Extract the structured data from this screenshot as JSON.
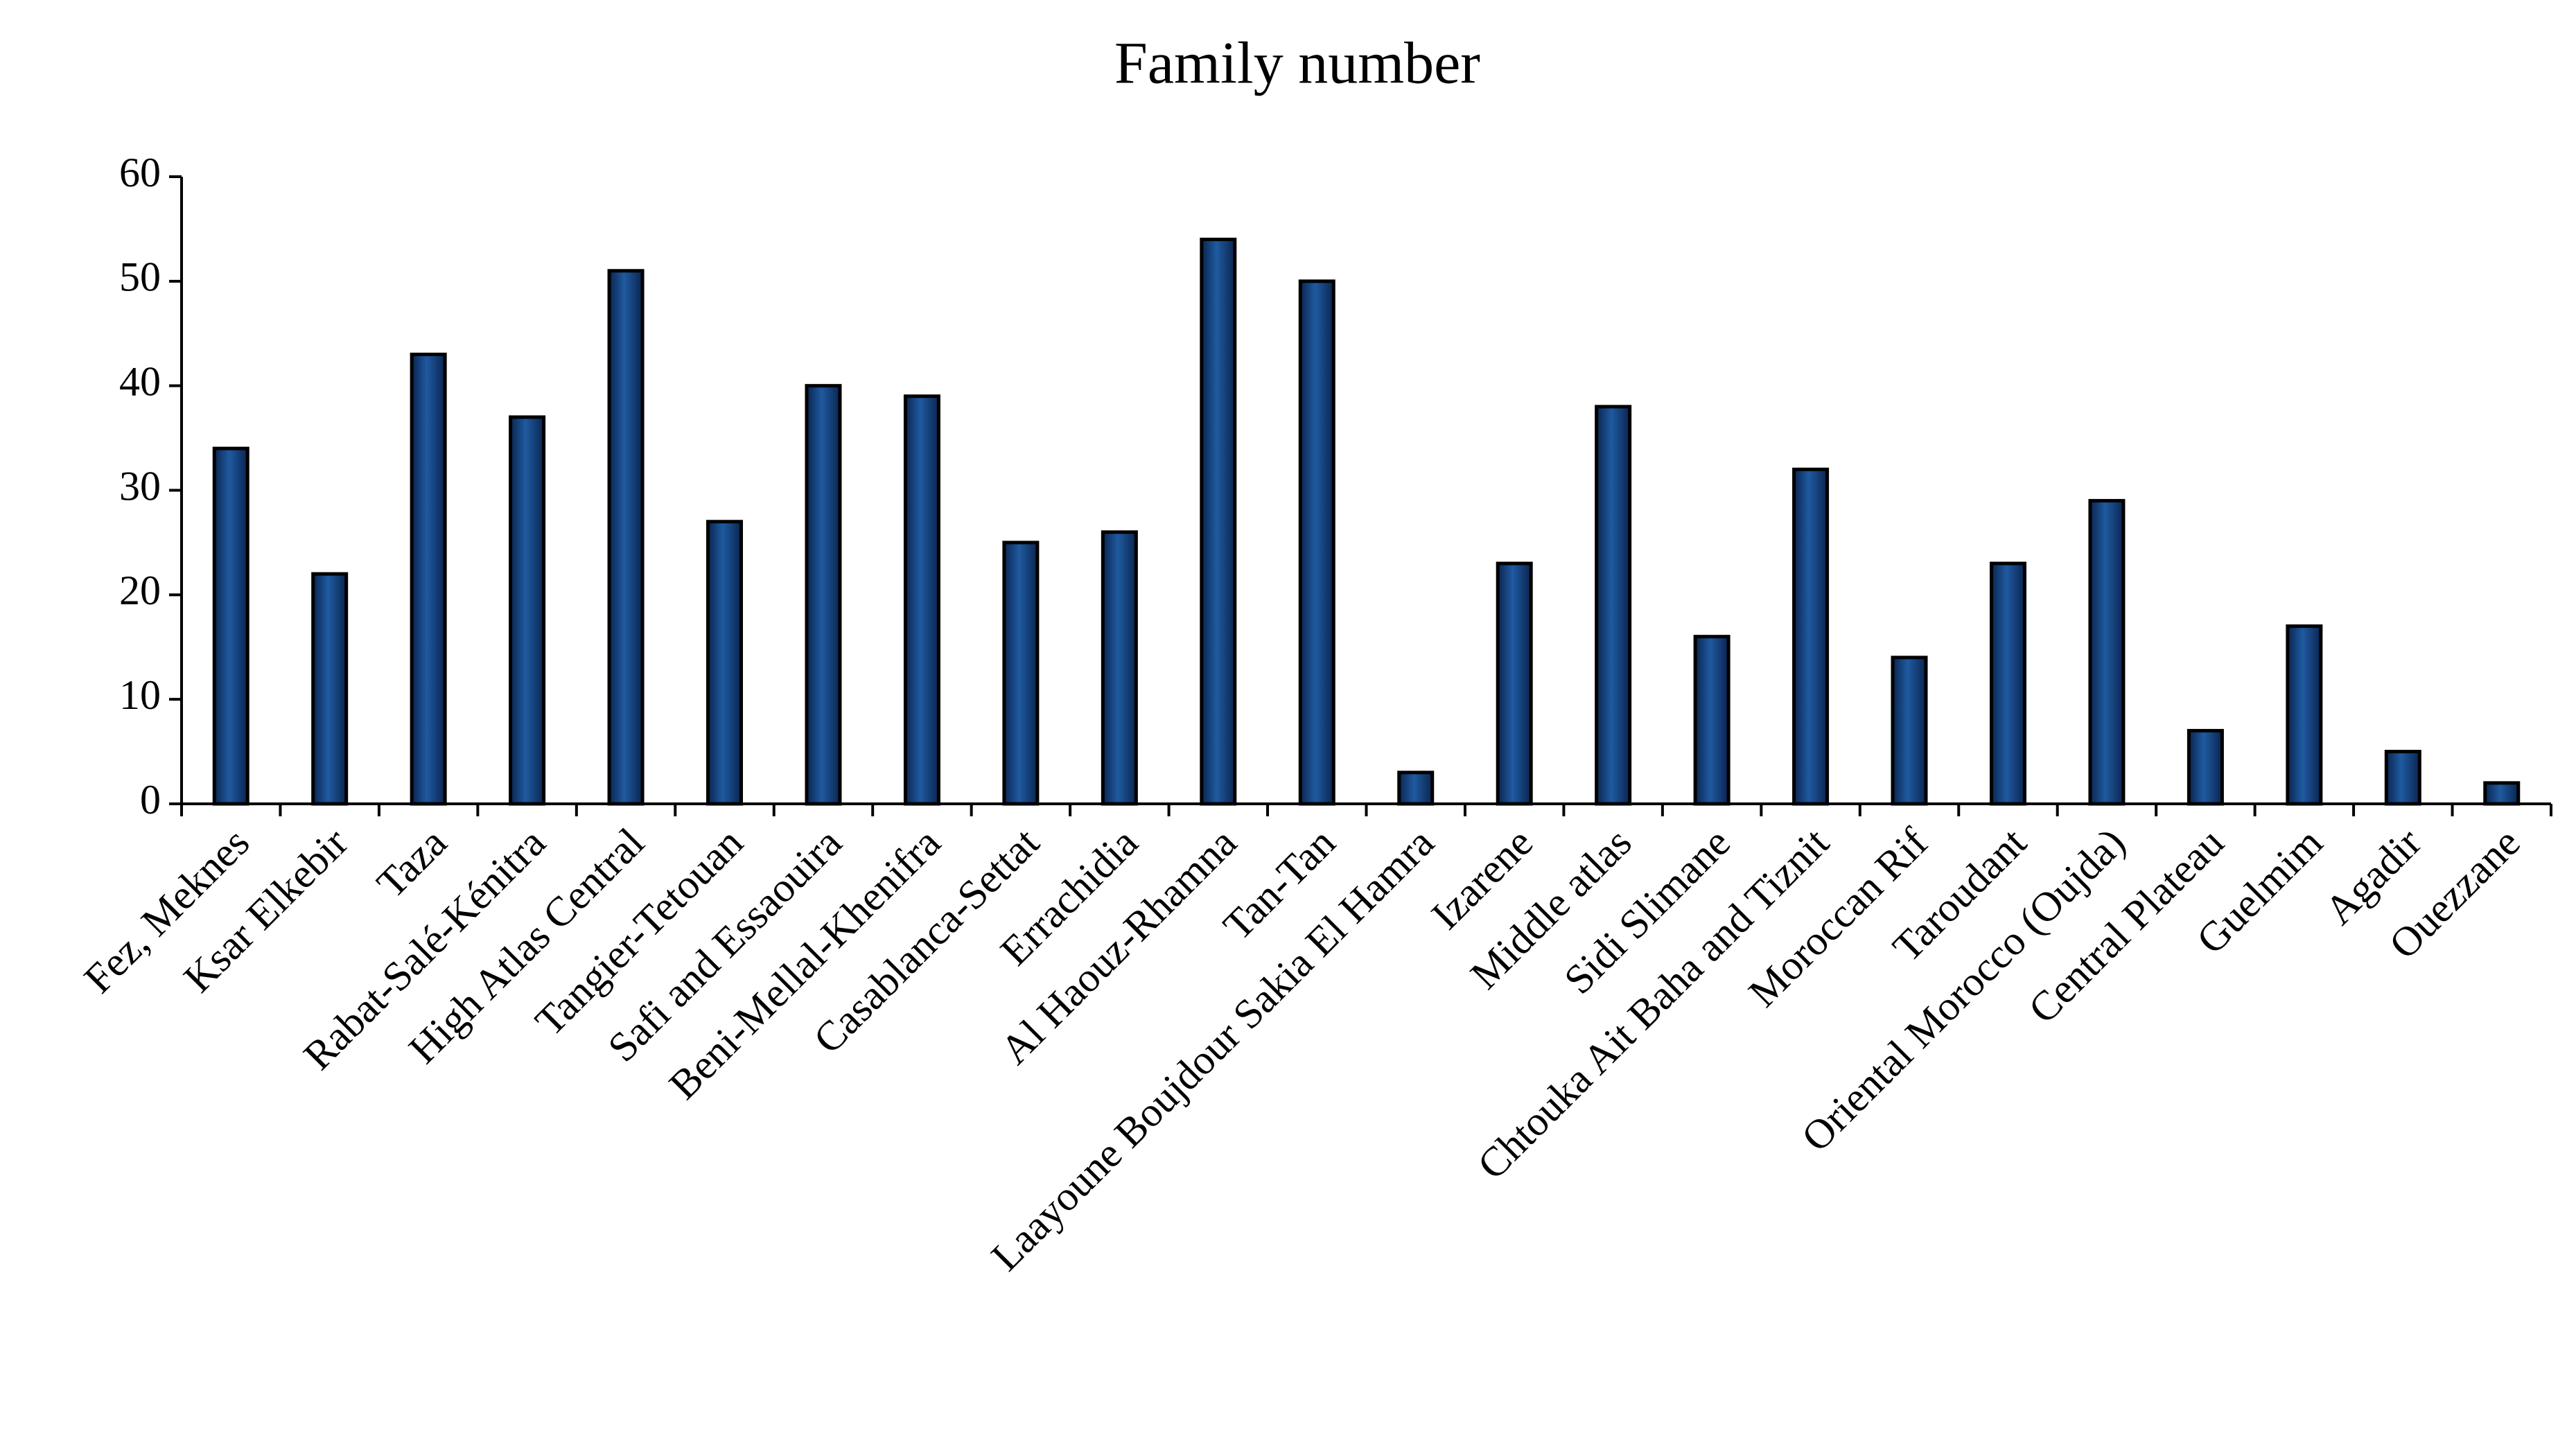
{
  "chart_data": {
    "type": "bar",
    "title": "Family number",
    "categories": [
      "Fez, Meknes",
      "Ksar Elkebir",
      "Taza",
      "Rabat-Salé-Kénitra",
      "High Atlas Central",
      "Tangier-Tetouan",
      "Safi and Essaouira",
      "Beni-Mellal-Khenifra",
      "Casablanca-Settat",
      "Errachidia",
      "Al Haouz-Rhamna",
      "Tan-Tan",
      "Laayoune Boujdour Sakia El Hamra",
      "Izarene",
      "Middle atlas",
      "Sidi Slimane",
      "Chtouka Ait Baha and Tiznit",
      "Moroccan Rif",
      "Taroudant",
      "Oriental Morocco (Oujda)",
      "Central Plateau",
      "Guelmim",
      "Agadir",
      "Ouezzane"
    ],
    "values": [
      34,
      22,
      43,
      37,
      51,
      27,
      40,
      39,
      25,
      26,
      54,
      50,
      3,
      23,
      38,
      16,
      32,
      14,
      23,
      29,
      7,
      17,
      5,
      2
    ],
    "color": "#1f5aa0",
    "ylim": [
      0,
      60
    ],
    "yticks": [
      0,
      10,
      20,
      30,
      40,
      50,
      60
    ],
    "grid": false
  }
}
